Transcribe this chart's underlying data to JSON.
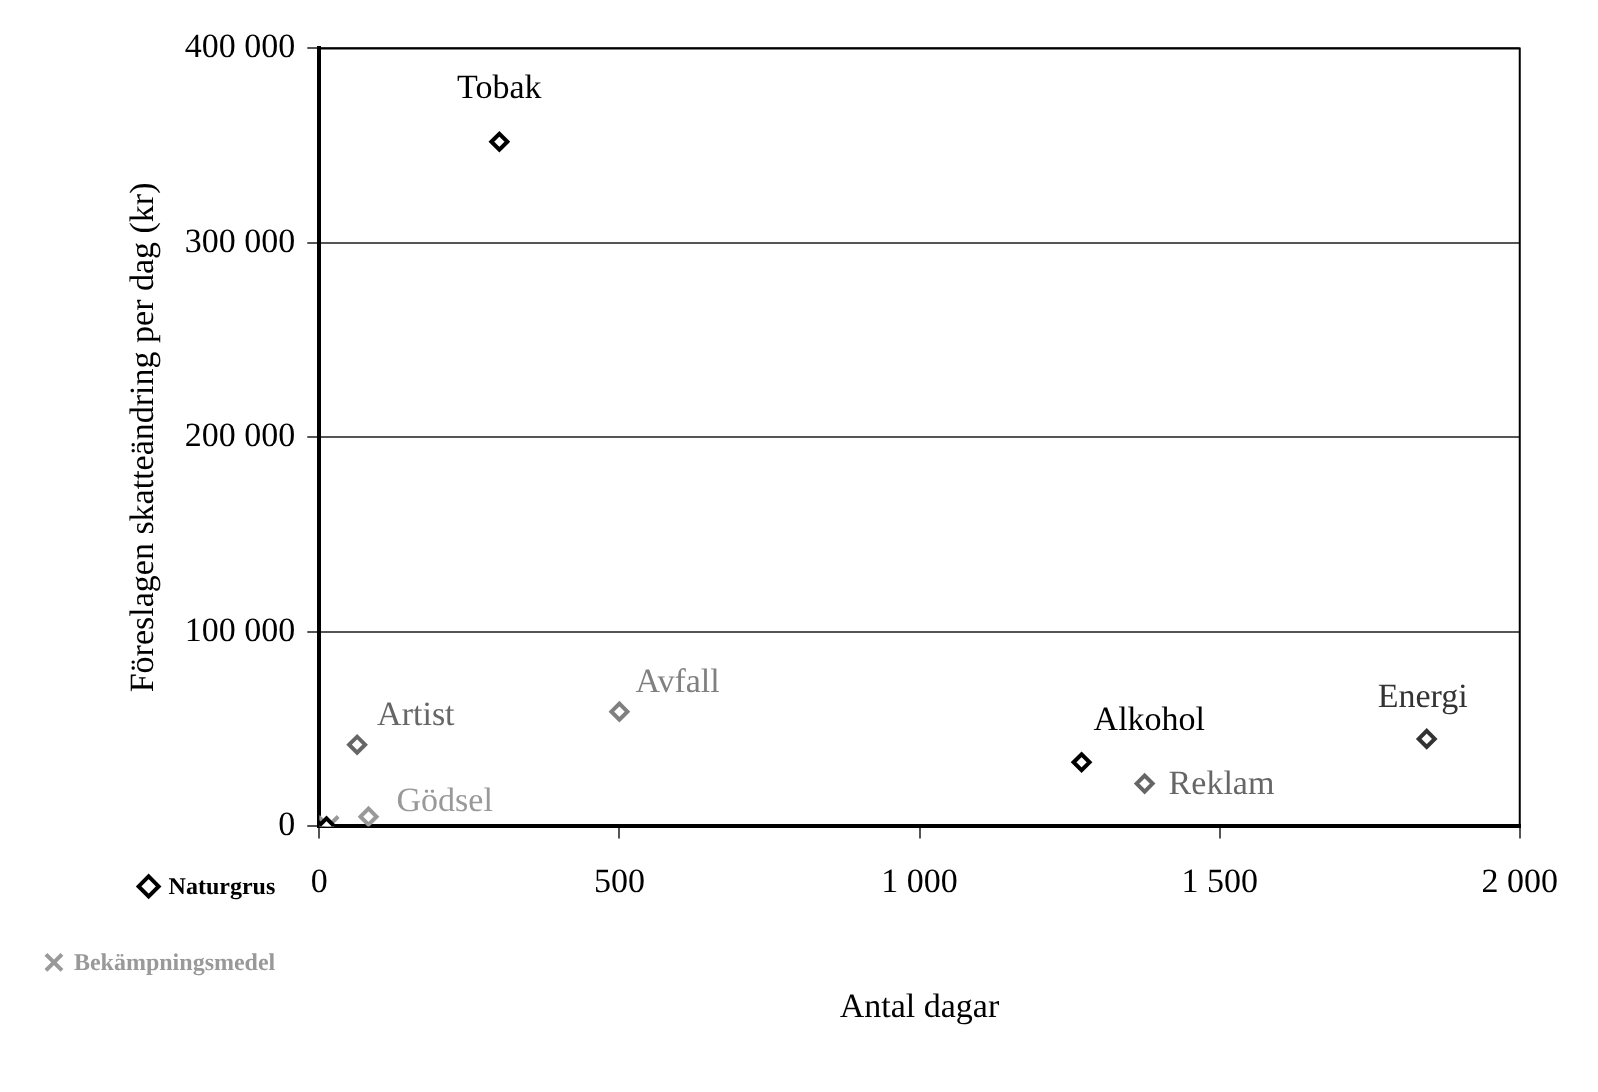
{
  "chart_data": {
    "type": "scatter",
    "xlabel": "Antal dagar",
    "ylabel": "Föreslagen skatteändring per dag (kr)",
    "xlim": [
      0,
      2000
    ],
    "xticks": [
      0,
      500,
      {
        "value": 1000,
        "label": "1 000"
      },
      {
        "value": 1500,
        "label": "1 500"
      },
      {
        "value": 2000,
        "label": "2 000"
      }
    ],
    "ylim": [
      0,
      400000
    ],
    "yticks": [
      0,
      {
        "value": 100000,
        "label": "100 000"
      },
      {
        "value": 200000,
        "label": "200 000"
      },
      {
        "value": 300000,
        "label": "300 000"
      },
      {
        "value": 400000,
        "label": "400 000"
      }
    ],
    "grid": "y",
    "legend": "bottom left",
    "marker": "diamond",
    "series": [
      {
        "name": "Tobak",
        "color": "#000000",
        "x": [
          300
        ],
        "values": [
          352000
        ]
      },
      {
        "name": "Artist",
        "color": "#666666",
        "x": [
          63
        ],
        "values": [
          42000
        ]
      },
      {
        "name": "Avfall",
        "color": "#808080",
        "x": [
          500
        ],
        "values": [
          59000
        ]
      },
      {
        "name": "Alkohol",
        "color": "#000000",
        "x": [
          1270
        ],
        "values": [
          33000
        ]
      },
      {
        "name": "Reklam",
        "color": "#666666",
        "x": [
          1375
        ],
        "values": [
          22000
        ]
      },
      {
        "name": "Energi",
        "color": "#333333",
        "x": [
          1845
        ],
        "values": [
          45000
        ]
      },
      {
        "name": "Gödsel",
        "color": "#999999",
        "x": [
          82
        ],
        "values": [
          5000
        ]
      },
      {
        "name": "Naturgrus",
        "color": "#000000",
        "x": [
          12
        ],
        "values": [
          0
        ]
      },
      {
        "name": "Bekämpningsmedel",
        "color": "#999999",
        "x": [
          15
        ],
        "values": [
          0
        ],
        "marker": "cross"
      }
    ]
  }
}
